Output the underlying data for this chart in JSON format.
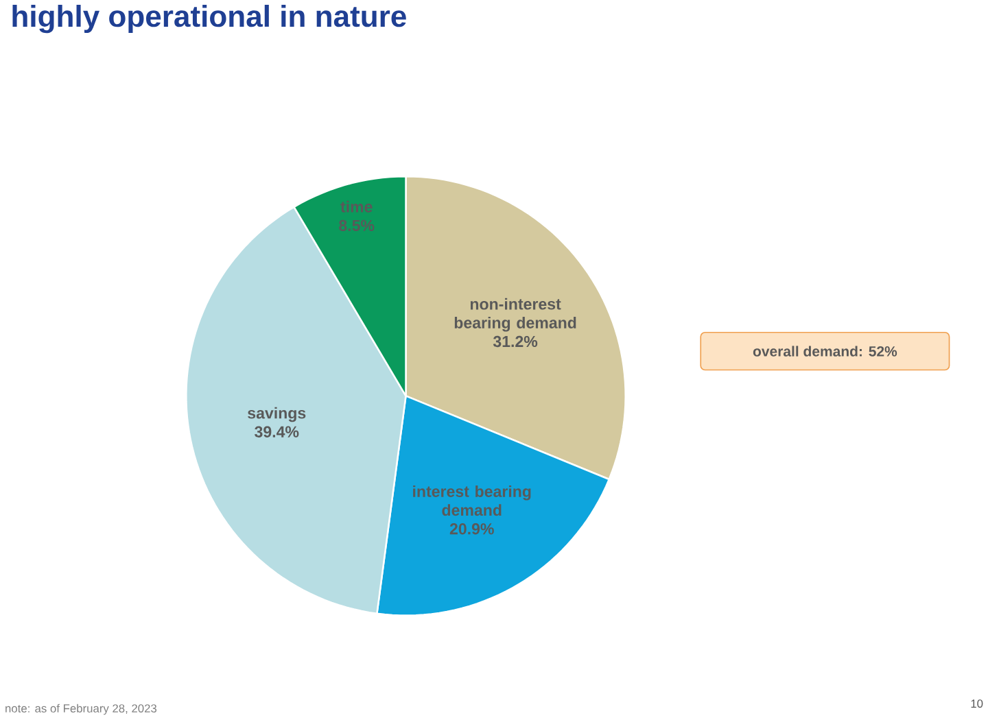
{
  "chart_data": {
    "type": "pie",
    "title": "highly operational in nature",
    "categories": [
      "non-interest bearing demand",
      "interest bearing demand",
      "savings",
      "time"
    ],
    "values": [
      31.2,
      20.9,
      39.4,
      8.5
    ],
    "value_labels": [
      "31.2%",
      "20.9%",
      "39.4%",
      "8.5%"
    ],
    "colors": [
      "#d4c99e",
      "#0ea5dd",
      "#b7dde3",
      "#0a9a5c"
    ],
    "annotations": [
      "overall demand: 52%",
      "note: as of February 28, 2023",
      "10"
    ]
  }
}
